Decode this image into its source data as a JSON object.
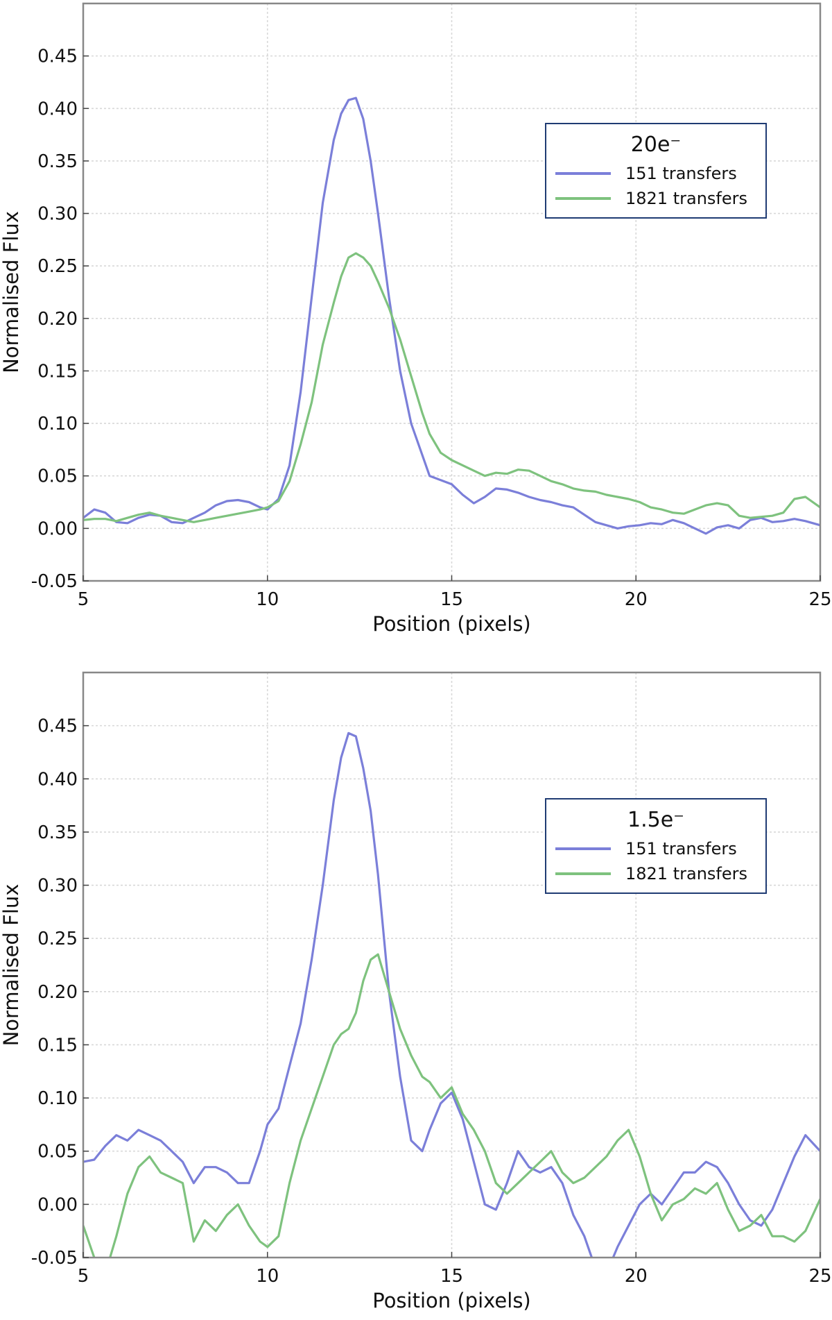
{
  "chart_data": [
    {
      "type": "line",
      "xlabel": "Position (pixels)",
      "ylabel": "Normalised Flux",
      "xlim": [
        5,
        25
      ],
      "ylim": [
        -0.05,
        0.5
      ],
      "xticks": [
        5,
        10,
        15,
        20,
        25
      ],
      "yticks": [
        -0.05,
        0.0,
        0.05,
        0.1,
        0.15,
        0.2,
        0.25,
        0.3,
        0.35,
        0.4,
        0.45
      ],
      "ytick_labels": [
        "-0.05",
        "0.00",
        "0.05",
        "0.10",
        "0.15",
        "0.20",
        "0.25",
        "0.30",
        "0.35",
        "0.40",
        "0.45"
      ],
      "xtick_labels": [
        "5",
        "10",
        "15",
        "20",
        "25"
      ],
      "grid": true,
      "legend": {
        "title": "20e⁻",
        "placement": "top-right"
      },
      "series": [
        {
          "name": "151 transfers",
          "color": "#7b7fd9",
          "x": [
            5.0,
            5.3,
            5.6,
            5.9,
            6.2,
            6.5,
            6.8,
            7.1,
            7.4,
            7.7,
            8.0,
            8.3,
            8.6,
            8.9,
            9.2,
            9.5,
            9.8,
            10.0,
            10.3,
            10.6,
            10.9,
            11.2,
            11.5,
            11.8,
            12.0,
            12.2,
            12.4,
            12.6,
            12.8,
            13.0,
            13.3,
            13.6,
            13.9,
            14.2,
            14.4,
            14.7,
            15.0,
            15.3,
            15.6,
            15.9,
            16.2,
            16.5,
            16.8,
            17.1,
            17.4,
            17.7,
            18.0,
            18.3,
            18.6,
            18.9,
            19.2,
            19.5,
            19.8,
            20.1,
            20.4,
            20.7,
            21.0,
            21.3,
            21.6,
            21.9,
            22.2,
            22.5,
            22.8,
            23.1,
            23.4,
            23.7,
            24.0,
            24.3,
            24.6,
            25.0
          ],
          "values": [
            0.01,
            0.018,
            0.015,
            0.006,
            0.005,
            0.01,
            0.013,
            0.012,
            0.006,
            0.005,
            0.01,
            0.015,
            0.022,
            0.026,
            0.027,
            0.025,
            0.02,
            0.018,
            0.028,
            0.06,
            0.13,
            0.22,
            0.31,
            0.37,
            0.395,
            0.408,
            0.41,
            0.39,
            0.35,
            0.3,
            0.22,
            0.15,
            0.1,
            0.07,
            0.05,
            0.046,
            0.042,
            0.032,
            0.024,
            0.03,
            0.038,
            0.037,
            0.034,
            0.03,
            0.027,
            0.025,
            0.022,
            0.02,
            0.013,
            0.006,
            0.003,
            0.0,
            0.002,
            0.003,
            0.005,
            0.004,
            0.008,
            0.005,
            0.0,
            -0.005,
            0.001,
            0.003,
            0.0,
            0.008,
            0.01,
            0.006,
            0.007,
            0.009,
            0.007,
            0.003
          ]
        },
        {
          "name": "1821 transfers",
          "color": "#7ec27e",
          "x": [
            5.0,
            5.3,
            5.6,
            5.9,
            6.2,
            6.5,
            6.8,
            7.1,
            7.4,
            7.7,
            8.0,
            8.3,
            8.6,
            8.9,
            9.2,
            9.5,
            9.8,
            10.0,
            10.3,
            10.6,
            10.9,
            11.2,
            11.5,
            11.8,
            12.0,
            12.2,
            12.4,
            12.6,
            12.8,
            13.0,
            13.3,
            13.6,
            13.9,
            14.2,
            14.4,
            14.7,
            15.0,
            15.3,
            15.6,
            15.9,
            16.2,
            16.5,
            16.8,
            17.1,
            17.4,
            17.7,
            18.0,
            18.3,
            18.6,
            18.9,
            19.2,
            19.5,
            19.8,
            20.1,
            20.4,
            20.7,
            21.0,
            21.3,
            21.6,
            21.9,
            22.2,
            22.5,
            22.8,
            23.1,
            23.4,
            23.7,
            24.0,
            24.3,
            24.6,
            25.0
          ],
          "values": [
            0.008,
            0.009,
            0.009,
            0.007,
            0.01,
            0.013,
            0.015,
            0.012,
            0.01,
            0.008,
            0.006,
            0.008,
            0.01,
            0.012,
            0.014,
            0.016,
            0.018,
            0.02,
            0.026,
            0.045,
            0.08,
            0.12,
            0.175,
            0.215,
            0.24,
            0.258,
            0.262,
            0.258,
            0.25,
            0.235,
            0.21,
            0.18,
            0.145,
            0.11,
            0.09,
            0.072,
            0.065,
            0.06,
            0.055,
            0.05,
            0.053,
            0.052,
            0.056,
            0.055,
            0.05,
            0.045,
            0.042,
            0.038,
            0.036,
            0.035,
            0.032,
            0.03,
            0.028,
            0.025,
            0.02,
            0.018,
            0.015,
            0.014,
            0.018,
            0.022,
            0.024,
            0.022,
            0.012,
            0.01,
            0.011,
            0.012,
            0.015,
            0.028,
            0.03,
            0.02
          ]
        }
      ]
    },
    {
      "type": "line",
      "xlabel": "Position (pixels)",
      "ylabel": "Normalised Flux",
      "xlim": [
        5,
        25
      ],
      "ylim": [
        -0.05,
        0.5
      ],
      "xticks": [
        5,
        10,
        15,
        20,
        25
      ],
      "yticks": [
        -0.05,
        0.0,
        0.05,
        0.1,
        0.15,
        0.2,
        0.25,
        0.3,
        0.35,
        0.4,
        0.45
      ],
      "ytick_labels": [
        "-0.05",
        "0.00",
        "0.05",
        "0.10",
        "0.15",
        "0.20",
        "0.25",
        "0.30",
        "0.35",
        "0.40",
        "0.45"
      ],
      "xtick_labels": [
        "5",
        "10",
        "15",
        "20",
        "25"
      ],
      "grid": true,
      "legend": {
        "title": "1.5e⁻",
        "placement": "top-right"
      },
      "series": [
        {
          "name": "151 transfers",
          "color": "#7b7fd9",
          "x": [
            5.0,
            5.3,
            5.6,
            5.9,
            6.2,
            6.5,
            6.8,
            7.1,
            7.4,
            7.7,
            8.0,
            8.3,
            8.6,
            8.9,
            9.2,
            9.5,
            9.8,
            10.0,
            10.3,
            10.6,
            10.9,
            11.2,
            11.5,
            11.8,
            12.0,
            12.2,
            12.4,
            12.6,
            12.8,
            13.0,
            13.3,
            13.6,
            13.9,
            14.2,
            14.4,
            14.7,
            15.0,
            15.3,
            15.6,
            15.9,
            16.2,
            16.5,
            16.8,
            17.1,
            17.4,
            17.7,
            18.0,
            18.3,
            18.6,
            18.9,
            19.2,
            19.5,
            19.8,
            20.1,
            20.4,
            20.7,
            21.0,
            21.3,
            21.6,
            21.9,
            22.2,
            22.5,
            22.8,
            23.1,
            23.4,
            23.7,
            24.0,
            24.3,
            24.6,
            25.0
          ],
          "values": [
            0.04,
            0.042,
            0.055,
            0.065,
            0.06,
            0.07,
            0.065,
            0.06,
            0.05,
            0.04,
            0.02,
            0.035,
            0.035,
            0.03,
            0.02,
            0.02,
            0.05,
            0.075,
            0.09,
            0.13,
            0.17,
            0.23,
            0.3,
            0.38,
            0.42,
            0.443,
            0.44,
            0.41,
            0.37,
            0.31,
            0.2,
            0.12,
            0.06,
            0.05,
            0.07,
            0.095,
            0.105,
            0.08,
            0.04,
            0.0,
            -0.005,
            0.02,
            0.05,
            0.035,
            0.03,
            0.035,
            0.02,
            -0.01,
            -0.03,
            -0.06,
            -0.065,
            -0.04,
            -0.02,
            0.0,
            0.01,
            0.0,
            0.015,
            0.03,
            0.03,
            0.04,
            0.035,
            0.02,
            0.0,
            -0.015,
            -0.02,
            -0.005,
            0.02,
            0.045,
            0.065,
            0.05
          ]
        },
        {
          "name": "1821 transfers",
          "color": "#7ec27e",
          "x": [
            5.0,
            5.3,
            5.6,
            5.9,
            6.2,
            6.5,
            6.8,
            7.1,
            7.4,
            7.7,
            8.0,
            8.3,
            8.6,
            8.9,
            9.2,
            9.5,
            9.8,
            10.0,
            10.3,
            10.6,
            10.9,
            11.2,
            11.5,
            11.8,
            12.0,
            12.2,
            12.4,
            12.6,
            12.8,
            13.0,
            13.3,
            13.6,
            13.9,
            14.2,
            14.4,
            14.7,
            15.0,
            15.3,
            15.6,
            15.9,
            16.2,
            16.5,
            16.8,
            17.1,
            17.4,
            17.7,
            18.0,
            18.3,
            18.6,
            18.9,
            19.2,
            19.5,
            19.8,
            20.1,
            20.4,
            20.7,
            21.0,
            21.3,
            21.6,
            21.9,
            22.2,
            22.5,
            22.8,
            23.1,
            23.4,
            23.7,
            24.0,
            24.3,
            24.6,
            25.0
          ],
          "values": [
            -0.02,
            -0.05,
            -0.065,
            -0.03,
            0.01,
            0.035,
            0.045,
            0.03,
            0.025,
            0.02,
            -0.035,
            -0.015,
            -0.025,
            -0.01,
            0.0,
            -0.02,
            -0.035,
            -0.04,
            -0.03,
            0.02,
            0.06,
            0.09,
            0.12,
            0.15,
            0.16,
            0.165,
            0.18,
            0.21,
            0.23,
            0.235,
            0.2,
            0.165,
            0.14,
            0.12,
            0.115,
            0.1,
            0.11,
            0.085,
            0.07,
            0.05,
            0.02,
            0.01,
            0.02,
            0.03,
            0.04,
            0.05,
            0.03,
            0.02,
            0.025,
            0.035,
            0.045,
            0.06,
            0.07,
            0.045,
            0.01,
            -0.015,
            0.0,
            0.005,
            0.015,
            0.01,
            0.02,
            -0.005,
            -0.025,
            -0.02,
            -0.01,
            -0.03,
            -0.03,
            -0.035,
            -0.025,
            0.005
          ]
        }
      ]
    }
  ]
}
